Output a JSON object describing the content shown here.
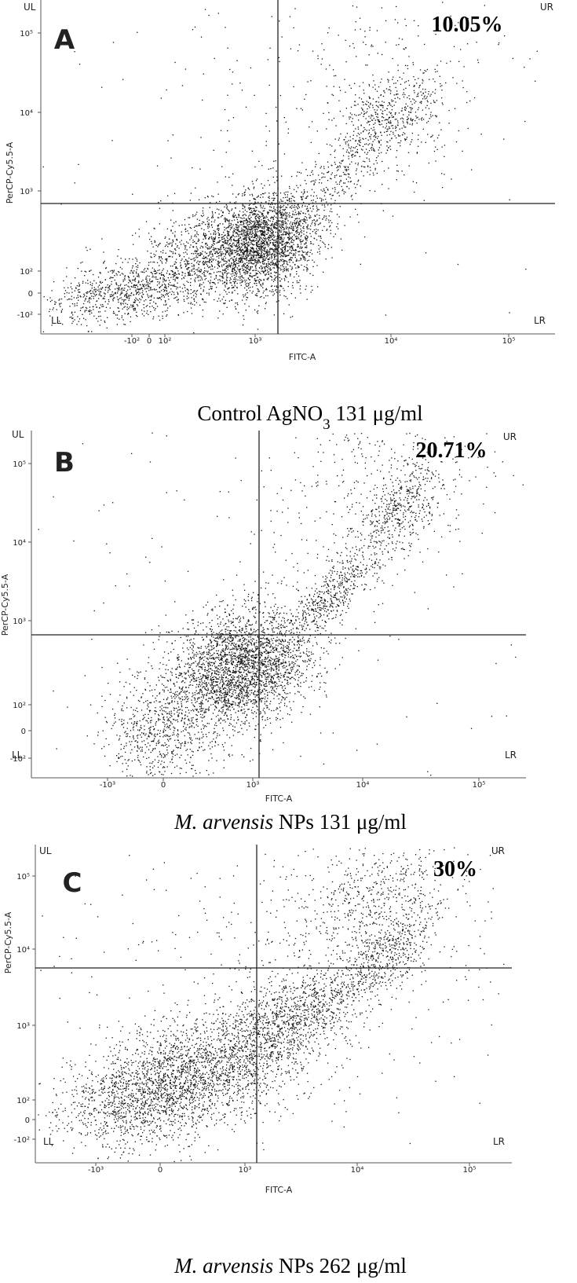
{
  "panels": [
    {
      "letter": "A",
      "percentage": "10.05%",
      "quadrants": [
        "UL",
        "UR",
        "LL",
        "LR"
      ],
      "x_axis": {
        "label": "FITC-A",
        "ticks": [
          "-10²",
          "0",
          "10²",
          "10³",
          "10⁴",
          "10⁵"
        ]
      },
      "y_axis": {
        "label": "PerCP-Cy5.5-A",
        "ticks": [
          "10⁵",
          "10⁴",
          "10³",
          "10²",
          "0",
          "-10²"
        ]
      },
      "caption": [
        {
          "text": "Control AgNO",
          "style": "normal"
        },
        {
          "text": "3",
          "style": "sub"
        },
        {
          "text": " 131 μg/ml",
          "style": "normal"
        }
      ]
    },
    {
      "letter": "B",
      "percentage": "20.71%",
      "quadrants": [
        "UL",
        "UR",
        "LL",
        "LR"
      ],
      "x_axis": {
        "label": "FITC-A",
        "ticks": [
          "-10³",
          "0",
          "10³",
          "10⁴",
          "10⁵"
        ]
      },
      "y_axis": {
        "label": "PerCP-Cy5.5-A",
        "ticks": [
          "10⁵",
          "10⁴",
          "10³",
          "10²",
          "0",
          "-10²"
        ]
      },
      "caption": [
        {
          "text": "M. arvensis",
          "style": "italic"
        },
        {
          "text": "  NPs 131 μg/ml",
          "style": "normal"
        }
      ]
    },
    {
      "letter": "C",
      "percentage": "30%",
      "quadrants": [
        "UL",
        "UR",
        "LL",
        "LR"
      ],
      "x_axis": {
        "label": "FITC-A",
        "ticks": [
          "-10³",
          "0",
          "10³",
          "10⁴",
          "10⁵"
        ]
      },
      "y_axis": {
        "label": "PerCP-Cy5.5-A",
        "ticks": [
          "10⁵",
          "10⁴",
          "10³",
          "10²",
          "0",
          "-10²"
        ]
      },
      "caption": [
        {
          "text": "M. arvensis",
          "style": "italic"
        },
        {
          "text": "  NPs 262 μg/ml",
          "style": "normal"
        }
      ]
    }
  ]
}
